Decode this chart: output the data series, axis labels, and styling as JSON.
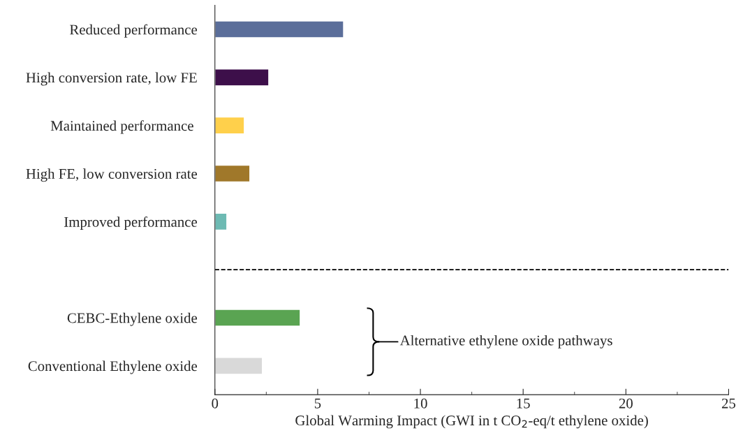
{
  "chart_data": {
    "type": "bar",
    "orientation": "horizontal",
    "categories": [
      "Reduced performance",
      "High conversion rate, low FE",
      "Maintained performance ",
      "High FE, low conversion rate",
      "Improved performance",
      null,
      "CEBC-Ethylene oxide",
      "Conventional Ethylene oxide"
    ],
    "values": [
      6.26,
      2.62,
      1.43,
      1.7,
      0.58,
      null,
      4.15,
      2.31
    ],
    "colors": [
      "#5b6e9a",
      "#3d0f4a",
      "#ffd04b",
      "#a0782a",
      "#6dbab3",
      null,
      "#5aa452",
      "#d9d9d9"
    ],
    "xlabel": "Global Warming Impact (GWI in t CO$_{2}$-eq/t ethylene oxide)",
    "xlim": [
      0,
      25
    ],
    "xticks": [
      0,
      5,
      10,
      15,
      20,
      25
    ],
    "ref_lines": [
      {
        "axis": "y",
        "line_style": "dashed",
        "color": "#000000"
      }
    ],
    "annotations": [
      "Alternative ethylene oxide pathways"
    ],
    "grid": false
  }
}
